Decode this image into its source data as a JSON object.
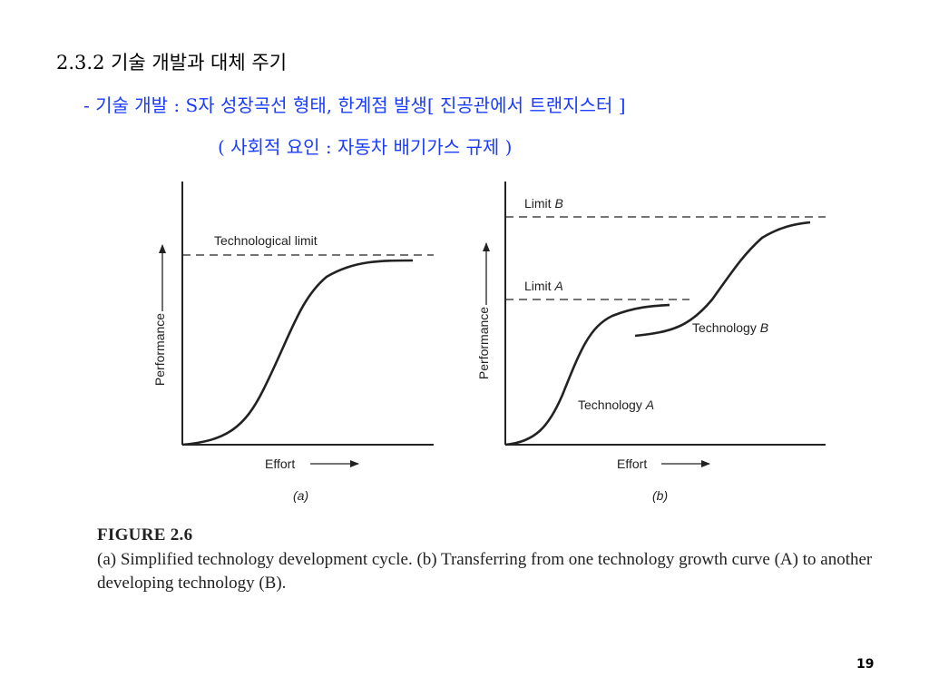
{
  "slide": {
    "heading": "2.3.2 기술 개발과 대체 주기",
    "bullet_line1": "- 기술 개발 : S자 성장곡선 형태, 한계점 발생[ 진공관에서 트랜지스터 ]",
    "bullet_line2": "( 사회적 요인 : 자동차 배기가스 규제 )",
    "page_number": "19"
  },
  "colors": {
    "heading_text": "#000000",
    "bullet_text": "#1a3cff",
    "figure_ink": "#222222"
  },
  "figure": {
    "panel_a": {
      "limit_label": "Technological limit",
      "ylabel": "Performance",
      "xlabel": "Effort",
      "panel_label": "(a)"
    },
    "panel_b": {
      "limit_b_label": "Limit",
      "limit_b_letter": "B",
      "limit_a_label": "Limit",
      "limit_a_letter": "A",
      "tech_a_label": "Technology",
      "tech_a_letter": "A",
      "tech_b_label": "Technology",
      "tech_b_letter": "B",
      "ylabel": "Performance",
      "xlabel": "Effort",
      "panel_label": "(b)"
    },
    "title": "FIGURE 2.6",
    "caption": "(a) Simplified technology development cycle. (b) Transferring from one technology growth curve (A) to another developing technology (B)."
  }
}
